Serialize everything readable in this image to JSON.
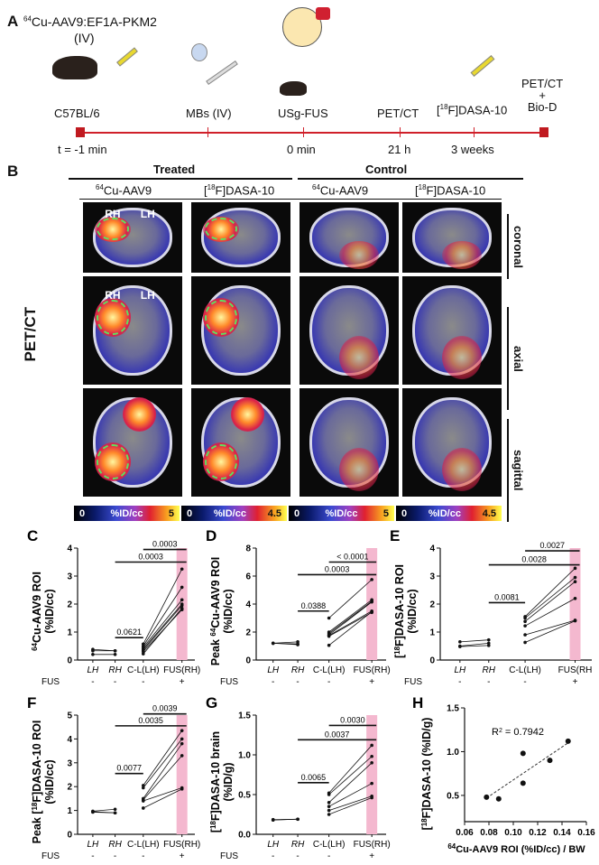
{
  "panel_a": {
    "label": "A",
    "title_sup": "64",
    "title": "Cu-AAV9:EF1A-PKM2",
    "title_line2": "(IV)",
    "events": [
      {
        "top": "C57BL/6",
        "bottom": "t = -1 min"
      },
      {
        "top": "MBs (IV)",
        "bottom": ""
      },
      {
        "top": "USg-FUS",
        "bottom": "0 min"
      },
      {
        "top": "PET/CT",
        "bottom": "21 h"
      },
      {
        "top_sup": "18",
        "top": "[",
        "top_rest": "F]DASA-10",
        "bottom": "3 weeks"
      },
      {
        "top": "PET/CT",
        "top2": "+",
        "top3": "Bio-D",
        "bottom": ""
      }
    ],
    "timeline_color": "#d0202a"
  },
  "panel_b": {
    "label": "B",
    "groups": [
      "Treated",
      "Control"
    ],
    "columns": [
      {
        "sup": "64",
        "pre": "",
        "text": "Cu-AAV9"
      },
      {
        "sup": "18",
        "pre": "[",
        "text": "F]DASA-10"
      },
      {
        "sup": "64",
        "pre": "",
        "text": "Cu-AAV9"
      },
      {
        "sup": "18",
        "pre": "[",
        "text": "F]DASA-10"
      }
    ],
    "rows": [
      "coronal",
      "axial",
      "sagittal"
    ],
    "modality": "PET/CT",
    "rh": "RH",
    "lh": "LH",
    "colorbars": [
      {
        "min": "0",
        "unit": "%ID/cc",
        "max": "5"
      },
      {
        "min": "0",
        "unit": "%ID/cc",
        "max": "4.5"
      },
      {
        "min": "0",
        "unit": "%ID/cc",
        "max": "5"
      },
      {
        "min": "0",
        "unit": "%ID/cc",
        "max": "4.5"
      }
    ]
  },
  "fus_row": {
    "label": "FUS",
    "signs": [
      "-",
      "-",
      "-",
      "+"
    ]
  },
  "chart_data": [
    {
      "panel": "C",
      "type": "line",
      "ylabel_sup": "64",
      "ylabel": "Cu-AAV9 ROI",
      "ylabel2": "(%ID/cc)",
      "ylim": [
        0,
        4
      ],
      "yticks": [
        "0",
        "1",
        "2",
        "3",
        "4"
      ],
      "categories": [
        "LH",
        "RH",
        "C-L(LH)",
        "FUS(RH)"
      ],
      "pairs_lh_rh": [
        [
          0.38,
          0.33
        ],
        [
          0.33,
          0.33
        ],
        [
          0.2,
          0.2
        ]
      ],
      "pairs_cl_fus": [
        [
          0.57,
          3.25
        ],
        [
          0.5,
          2.6
        ],
        [
          0.45,
          2.15
        ],
        [
          0.4,
          2.0
        ],
        [
          0.35,
          1.95
        ],
        [
          0.3,
          1.8
        ],
        [
          0.22,
          1.85
        ]
      ],
      "comparisons": [
        {
          "from": "RH",
          "to": "C-L(LH)",
          "y": 0.8,
          "p": "0.0621"
        },
        {
          "from": "RH",
          "to": "FUS(RH)",
          "y": 3.5,
          "p": "0.0003"
        },
        {
          "from": "C-L(LH)",
          "to": "FUS(RH)",
          "y": 3.95,
          "p": "0.0003"
        }
      ]
    },
    {
      "panel": "D",
      "type": "line",
      "ylabel_pre": "Peak ",
      "ylabel_sup": "64",
      "ylabel": "Cu-AAV9 ROI",
      "ylabel2": "(%ID/cc)",
      "ylim": [
        0,
        8
      ],
      "yticks": [
        "0",
        "2",
        "4",
        "6",
        "8"
      ],
      "categories": [
        "LH",
        "RH",
        "C-L(LH)",
        "FUS(RH)"
      ],
      "pairs_lh_rh": [
        [
          1.2,
          1.3
        ],
        [
          1.2,
          1.15
        ],
        [
          1.2,
          1.1
        ]
      ],
      "pairs_cl_fus": [
        [
          3.0,
          5.75
        ],
        [
          2.0,
          4.3
        ],
        [
          1.9,
          4.2
        ],
        [
          1.8,
          4.15
        ],
        [
          1.75,
          3.5
        ],
        [
          1.7,
          3.4
        ],
        [
          1.05,
          3.45
        ]
      ],
      "comparisons": [
        {
          "from": "RH",
          "to": "C-L(LH)",
          "y": 3.5,
          "p": "0.0388"
        },
        {
          "from": "RH",
          "to": "FUS(RH)",
          "y": 6.1,
          "p": "0.0003"
        },
        {
          "from": "C-L(LH)",
          "to": "FUS(RH)",
          "y": 7.0,
          "p": "< 0.0001"
        }
      ]
    },
    {
      "panel": "E",
      "type": "line",
      "ylabel_pre": "[",
      "ylabel_sup": "18",
      "ylabel": "F]DASA-10 ROI",
      "ylabel2": "(%ID/cc)",
      "ylim": [
        0,
        4
      ],
      "yticks": [
        "0",
        "1",
        "2",
        "3",
        "4"
      ],
      "categories": [
        "LH",
        "RH",
        "C-L(LH)",
        "FUS(RH"
      ],
      "pairs_lh_rh": [
        [
          0.65,
          0.72
        ],
        [
          0.5,
          0.6
        ],
        [
          0.48,
          0.52
        ]
      ],
      "pairs_cl_fus": [
        [
          1.55,
          3.28
        ],
        [
          1.5,
          2.95
        ],
        [
          1.38,
          2.8
        ],
        [
          1.22,
          2.2
        ],
        [
          0.9,
          1.42
        ],
        [
          0.63,
          1.4
        ]
      ],
      "comparisons": [
        {
          "from": "RH",
          "to": "C-L(LH)",
          "y": 2.05,
          "p": "0.0081"
        },
        {
          "from": "RH",
          "to": "FUS(RH)",
          "y": 3.4,
          "p": "0.0028"
        },
        {
          "from": "C-L(LH)",
          "to": "FUS(RH)",
          "y": 3.9,
          "p": "0.0027"
        }
      ]
    },
    {
      "panel": "F",
      "type": "line",
      "ylabel_pre": "Peak [",
      "ylabel_sup": "18",
      "ylabel": "F]DASA-10 ROI",
      "ylabel2": "(%ID/cc)",
      "ylim": [
        0,
        5
      ],
      "yticks": [
        "0",
        "1",
        "2",
        "3",
        "4",
        "5"
      ],
      "categories": [
        "LH",
        "RH",
        "C-L(LH)",
        "FUS(RH)"
      ],
      "pairs_lh_rh": [
        [
          0.97,
          1.05
        ],
        [
          0.95,
          0.9
        ],
        [
          0.93,
          0.9
        ]
      ],
      "pairs_cl_fus": [
        [
          2.05,
          4.35
        ],
        [
          1.95,
          4.0
        ],
        [
          1.5,
          3.8
        ],
        [
          1.45,
          3.3
        ],
        [
          1.4,
          1.95
        ],
        [
          1.1,
          1.9
        ]
      ],
      "comparisons": [
        {
          "from": "RH",
          "to": "C-L(LH)",
          "y": 2.55,
          "p": "0.0077"
        },
        {
          "from": "RH",
          "to": "FUS(RH)",
          "y": 4.55,
          "p": "0.0035"
        },
        {
          "from": "C-L(LH)",
          "to": "FUS(RH)",
          "y": 5.05,
          "p": "0.0039"
        }
      ]
    },
    {
      "panel": "G",
      "type": "line",
      "ylabel_pre": "[",
      "ylabel_sup": "18",
      "ylabel": "F]DASA-10 brain",
      "ylabel2": "(%ID/g)",
      "ylim": [
        0,
        1.5
      ],
      "yticks": [
        "0.0",
        "0.5",
        "1.0",
        "1.5"
      ],
      "categories": [
        "LH",
        "RH",
        "C-L(LH)",
        "FUS(RH)"
      ],
      "pairs_lh_rh": [
        [
          0.18,
          0.19
        ],
        [
          0.18,
          0.19
        ],
        [
          0.185,
          0.19
        ]
      ],
      "pairs_cl_fus": [
        [
          0.52,
          1.12
        ],
        [
          0.5,
          0.98
        ],
        [
          0.4,
          0.9
        ],
        [
          0.35,
          0.64
        ],
        [
          0.3,
          0.48
        ],
        [
          0.25,
          0.46
        ]
      ],
      "comparisons": [
        {
          "from": "RH",
          "to": "C-L(LH)",
          "y": 0.65,
          "p": "0.0065"
        },
        {
          "from": "RH",
          "to": "FUS(RH)",
          "y": 1.19,
          "p": "0.0037"
        },
        {
          "from": "C-L(LH)",
          "to": "FUS(RH)",
          "y": 1.37,
          "p": "0.0030"
        }
      ]
    },
    {
      "panel": "H",
      "type": "scatter",
      "ylabel_pre": "[",
      "ylabel_sup": "18",
      "ylabel": "F]DASA-10 (%ID/g)",
      "xlabel_sup": "64",
      "xlabel": "Cu-AAV9 ROI (%ID/cc) / BW",
      "xlim": [
        0.06,
        0.16
      ],
      "ylim": [
        0.2,
        1.5
      ],
      "xticks": [
        "0.06",
        "0.08",
        "0.10",
        "0.12",
        "0.14",
        "0.16"
      ],
      "yticks": [
        "0.5",
        "1.0",
        "1.5"
      ],
      "points": [
        [
          0.078,
          0.48
        ],
        [
          0.088,
          0.46
        ],
        [
          0.108,
          0.98
        ],
        [
          0.108,
          0.64
        ],
        [
          0.13,
          0.9
        ],
        [
          0.145,
          1.12
        ]
      ],
      "fit_line": [
        [
          0.078,
          0.47
        ],
        [
          0.145,
          1.1
        ]
      ],
      "r2_label": "R",
      "r2_sup": "2",
      "r2_value": " = 0.7942"
    }
  ],
  "colors": {
    "highlight": "#f4b8cf",
    "timeline": "#d0202a",
    "roi": "#5fe05f"
  }
}
